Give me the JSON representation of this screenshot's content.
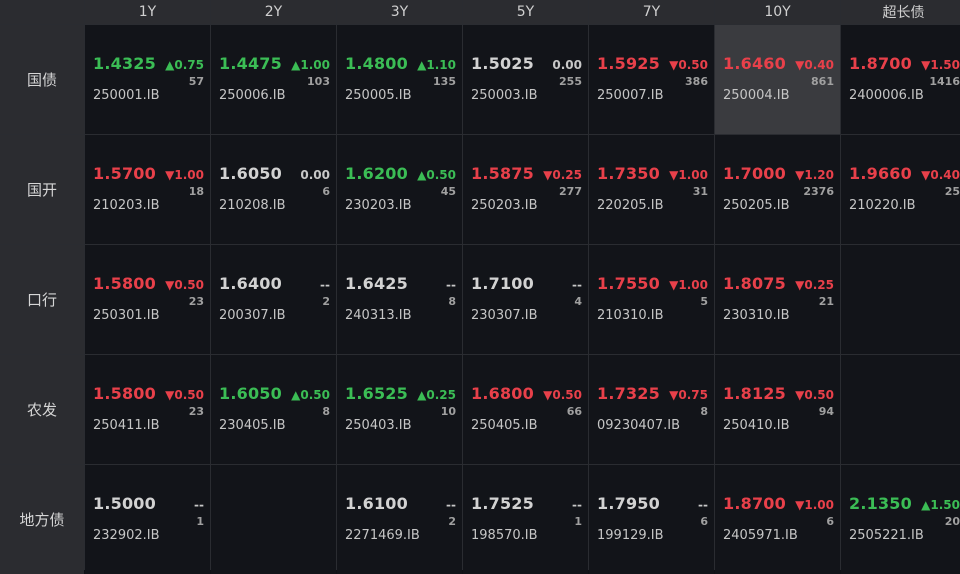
{
  "colors": {
    "up": "#3bbd55",
    "down": "#e8404a",
    "flat": "#d2d2d2",
    "selected_bg": "#3a3b3f"
  },
  "columns": [
    "1Y",
    "2Y",
    "3Y",
    "5Y",
    "7Y",
    "10Y",
    "超长债"
  ],
  "rows": [
    {
      "label": "国债",
      "cells": [
        {
          "price": "1.4325",
          "change": "▲0.75",
          "volume": "57",
          "code": "250001.IB",
          "dir": "up"
        },
        {
          "price": "1.4475",
          "change": "▲1.00",
          "volume": "103",
          "code": "250006.IB",
          "dir": "up"
        },
        {
          "price": "1.4800",
          "change": "▲1.10",
          "volume": "135",
          "code": "250005.IB",
          "dir": "up"
        },
        {
          "price": "1.5025",
          "change": "0.00",
          "volume": "255",
          "code": "250003.IB",
          "dir": "flat"
        },
        {
          "price": "1.5925",
          "change": "▼0.50",
          "volume": "386",
          "code": "250007.IB",
          "dir": "down"
        },
        {
          "price": "1.6460",
          "change": "▼0.40",
          "volume": "861",
          "code": "250004.IB",
          "dir": "down",
          "selected": true
        },
        {
          "price": "1.8700",
          "change": "▼1.50",
          "volume": "1416",
          "code": "2400006.IB",
          "dir": "down"
        }
      ]
    },
    {
      "label": "国开",
      "cells": [
        {
          "price": "1.5700",
          "change": "▼1.00",
          "volume": "18",
          "code": "210203.IB",
          "dir": "down"
        },
        {
          "price": "1.6050",
          "change": "0.00",
          "volume": "6",
          "code": "210208.IB",
          "dir": "flat"
        },
        {
          "price": "1.6200",
          "change": "▲0.50",
          "volume": "45",
          "code": "230203.IB",
          "dir": "up"
        },
        {
          "price": "1.5875",
          "change": "▼0.25",
          "volume": "277",
          "code": "250203.IB",
          "dir": "down"
        },
        {
          "price": "1.7350",
          "change": "▼1.00",
          "volume": "31",
          "code": "220205.IB",
          "dir": "down"
        },
        {
          "price": "1.7000",
          "change": "▼1.20",
          "volume": "2376",
          "code": "250205.IB",
          "dir": "down"
        },
        {
          "price": "1.9660",
          "change": "▼0.40",
          "volume": "25",
          "code": "210220.IB",
          "dir": "down"
        }
      ]
    },
    {
      "label": "口行",
      "cells": [
        {
          "price": "1.5800",
          "change": "▼0.50",
          "volume": "23",
          "code": "250301.IB",
          "dir": "down"
        },
        {
          "price": "1.6400",
          "change": "--",
          "volume": "2",
          "code": "200307.IB",
          "dir": "flat"
        },
        {
          "price": "1.6425",
          "change": "--",
          "volume": "8",
          "code": "240313.IB",
          "dir": "flat"
        },
        {
          "price": "1.7100",
          "change": "--",
          "volume": "4",
          "code": "230307.IB",
          "dir": "flat"
        },
        {
          "price": "1.7550",
          "change": "▼1.00",
          "volume": "5",
          "code": "210310.IB",
          "dir": "down"
        },
        {
          "price": "1.8075",
          "change": "▼0.25",
          "volume": "21",
          "code": "230310.IB",
          "dir": "down"
        },
        null
      ]
    },
    {
      "label": "农发",
      "cells": [
        {
          "price": "1.5800",
          "change": "▼0.50",
          "volume": "23",
          "code": "250411.IB",
          "dir": "down"
        },
        {
          "price": "1.6050",
          "change": "▲0.50",
          "volume": "8",
          "code": "230405.IB",
          "dir": "up"
        },
        {
          "price": "1.6525",
          "change": "▲0.25",
          "volume": "10",
          "code": "250403.IB",
          "dir": "up"
        },
        {
          "price": "1.6800",
          "change": "▼0.50",
          "volume": "66",
          "code": "250405.IB",
          "dir": "down"
        },
        {
          "price": "1.7325",
          "change": "▼0.75",
          "volume": "8",
          "code": "09230407.IB",
          "dir": "down"
        },
        {
          "price": "1.8125",
          "change": "▼0.50",
          "volume": "94",
          "code": "250410.IB",
          "dir": "down"
        },
        null
      ]
    },
    {
      "label": "地方债",
      "cells": [
        {
          "price": "1.5000",
          "change": "--",
          "volume": "1",
          "code": "232902.IB",
          "dir": "flat"
        },
        null,
        {
          "price": "1.6100",
          "change": "--",
          "volume": "2",
          "code": "2271469.IB",
          "dir": "flat"
        },
        {
          "price": "1.7525",
          "change": "--",
          "volume": "1",
          "code": "198570.IB",
          "dir": "flat"
        },
        {
          "price": "1.7950",
          "change": "--",
          "volume": "6",
          "code": "199129.IB",
          "dir": "flat"
        },
        {
          "price": "1.8700",
          "change": "▼1.00",
          "volume": "6",
          "code": "2405971.IB",
          "dir": "down"
        },
        {
          "price": "2.1350",
          "change": "▲1.50",
          "volume": "20",
          "code": "2505221.IB",
          "dir": "up"
        }
      ]
    }
  ]
}
